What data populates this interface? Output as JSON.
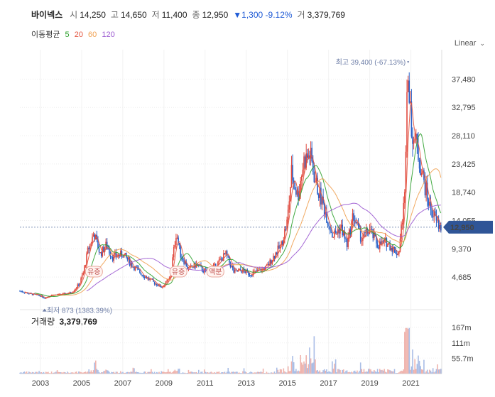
{
  "header": {
    "name": "바이넥스",
    "open_label": "시",
    "open": "14,250",
    "high_label": "고",
    "high": "14,650",
    "low_label": "저",
    "low": "11,400",
    "close_label": "종",
    "close": "12,950",
    "change": "▼1,300 -9.12%",
    "volume_label": "거",
    "volume": "3,379,769"
  },
  "ma_legend": {
    "label": "이동평균",
    "items": [
      {
        "label": "5",
        "color": "#2ca02c"
      },
      {
        "label": "20",
        "color": "#e4553f"
      },
      {
        "label": "60",
        "color": "#f0a050"
      },
      {
        "label": "120",
        "color": "#9b59d0"
      }
    ]
  },
  "scale_button": "Linear",
  "annotations": {
    "high": "최고 39,400 (-67.13%)",
    "low": "최저 873 (1383.39%)",
    "events": [
      "유증",
      "유증",
      "액분"
    ]
  },
  "volume": {
    "label": "거래량",
    "value": "3,379,769"
  },
  "current_price_tag": "12,950",
  "chart_data": {
    "type": "candlestick",
    "price_ticks": [
      4685,
      9370,
      14055,
      18740,
      23425,
      28110,
      32795,
      37480
    ],
    "price_tick_labels": [
      "4,685",
      "9,370",
      "14,055",
      "18,740",
      "23,425",
      "28,110",
      "32,795",
      "37,480"
    ],
    "ylim": [
      0,
      40000
    ],
    "volume_ticks": [
      "55.7m",
      "111m",
      "167m"
    ],
    "volume_tick_values": [
      55.7,
      111,
      167
    ],
    "volume_ylim": [
      0,
      190
    ],
    "x_tick_labels": [
      "2003",
      "2005",
      "2007",
      "2009",
      "2011",
      "2013",
      "2015",
      "2017",
      "2019",
      "2021"
    ],
    "x_range": [
      2002.0,
      2022.5
    ],
    "high": {
      "date": 2020.85,
      "value": 39400
    },
    "low": {
      "date": 2003.2,
      "value": 873
    },
    "events": [
      {
        "date": 2005.6,
        "label": "유증"
      },
      {
        "date": 2009.7,
        "label": "유증"
      },
      {
        "date": 2011.5,
        "label": "액분"
      }
    ],
    "price_series": {
      "x": [
        2002.0,
        2002.5,
        2003.0,
        2003.2,
        2003.5,
        2004.0,
        2004.5,
        2004.9,
        2005.1,
        2005.3,
        2005.6,
        2005.9,
        2006.2,
        2006.5,
        2007.0,
        2007.5,
        2008.0,
        2008.5,
        2008.9,
        2009.3,
        2009.6,
        2009.8,
        2010.2,
        2010.6,
        2011.0,
        2011.5,
        2012.0,
        2012.4,
        2012.8,
        2013.2,
        2013.6,
        2014.0,
        2014.4,
        2014.7,
        2015.0,
        2015.2,
        2015.5,
        2015.8,
        2016.1,
        2016.4,
        2016.8,
        2017.2,
        2017.6,
        2017.9,
        2018.2,
        2018.6,
        2019.0,
        2019.4,
        2019.8,
        2020.1,
        2020.4,
        2020.7,
        2020.85,
        2021.0,
        2021.3,
        2021.6,
        2021.9,
        2022.2,
        2022.4
      ],
      "close": [
        2400,
        1900,
        1600,
        1200,
        1700,
        1800,
        2100,
        3600,
        5600,
        9000,
        12000,
        8500,
        10000,
        8000,
        8500,
        6500,
        5000,
        3800,
        3000,
        4500,
        12200,
        8500,
        6000,
        6800,
        5500,
        6500,
        8500,
        5500,
        5800,
        5200,
        5700,
        6300,
        8500,
        10000,
        14000,
        22000,
        18000,
        24000,
        25000,
        20000,
        16000,
        11500,
        13000,
        10000,
        15000,
        11000,
        12500,
        10000,
        10500,
        9500,
        8500,
        18000,
        39400,
        30000,
        26000,
        21000,
        16500,
        14200,
        12950
      ]
    }
  }
}
